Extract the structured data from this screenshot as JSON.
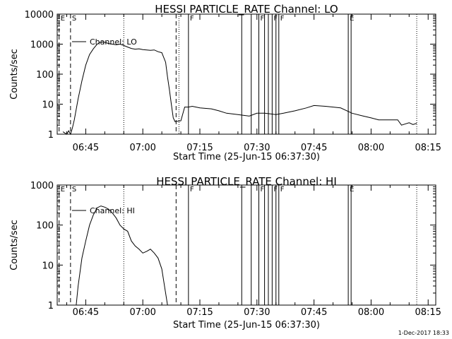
{
  "footer_date": "1-Dec-2017 18:33",
  "chart_data": [
    {
      "type": "line",
      "title": "HESSI PARTICLE_RATE Channel: LO",
      "xlabel": "Start Time (25-Jun-15 06:37:30)",
      "ylabel": "Counts/sec",
      "y_scale": "log",
      "ylim": [
        1,
        10000
      ],
      "xlim": [
        "06:37:30",
        "08:17:00"
      ],
      "x_ticks": [
        "06:45",
        "07:00",
        "07:15",
        "07:30",
        "07:45",
        "08:00",
        "08:15"
      ],
      "y_ticks": [
        "1",
        "10",
        "100",
        "1000",
        "10000"
      ],
      "legend": [
        "Channel: LO"
      ],
      "legend_position": "top-left",
      "series": [
        {
          "name": "Channel: LO",
          "x": [
            "06:39:00",
            "06:40:00",
            "06:40:30",
            "06:41:00",
            "06:41:30",
            "06:42:00",
            "06:43:00",
            "06:44:00",
            "06:45:00",
            "06:46:00",
            "06:47:00",
            "06:48:00",
            "06:49:00",
            "06:50:00",
            "06:51:00",
            "06:52:00",
            "06:53:00",
            "06:54:00",
            "06:55:00",
            "06:56:00",
            "06:57:00",
            "06:58:00",
            "06:59:00",
            "07:00:00",
            "07:01:00",
            "07:02:00",
            "07:03:00",
            "07:04:00",
            "07:05:00",
            "07:06:00",
            "07:06:30",
            "07:07:00",
            "07:07:30",
            "07:08:00",
            "07:08:30",
            "07:09:00",
            "07:10:00",
            "07:11:00",
            "07:12:00",
            "07:13:00",
            "07:15:00",
            "07:18:00",
            "07:20:00",
            "07:22:00",
            "07:25:00",
            "07:28:00",
            "07:30:00",
            "07:32:00",
            "07:35:00",
            "07:37:00",
            "07:40:00",
            "07:43:00",
            "07:45:00",
            "07:48:00",
            "07:50:00",
            "07:52:00",
            "07:55:00",
            "07:58:00",
            "08:00:00",
            "08:02:00",
            "08:05:00",
            "08:07:00",
            "08:08:00",
            "08:10:00",
            "08:11:00",
            "08:12:00"
          ],
          "y": [
            1.2,
            1.0,
            1.3,
            1.0,
            1.6,
            3,
            15,
            60,
            200,
            450,
            700,
            1000,
            1200,
            1150,
            1050,
            1000,
            950,
            1000,
            900,
            800,
            720,
            680,
            700,
            660,
            640,
            620,
            640,
            560,
            520,
            250,
            80,
            30,
            10,
            3.5,
            2.6,
            2.7,
            2.8,
            8,
            8,
            8.5,
            7.5,
            7,
            6,
            5,
            4.5,
            4,
            5,
            5,
            4.5,
            5,
            6,
            7.5,
            9,
            8.5,
            8,
            7.5,
            5,
            4,
            3.5,
            3,
            3,
            3,
            2,
            2.4,
            2.1,
            2.3
          ]
        }
      ],
      "time_markers": [
        {
          "label": "E",
          "time": "06:38:00",
          "style": "dashed"
        },
        {
          "label": "S",
          "time": "06:41:00",
          "style": "dashed"
        },
        {
          "label": "",
          "time": "06:55:00",
          "style": "dotted"
        },
        {
          "label": "",
          "time": "07:08:45",
          "style": "dashed"
        },
        {
          "label": "",
          "time": "07:09:30",
          "style": "dotted"
        },
        {
          "label": "F",
          "time": "07:12:00",
          "style": "solid"
        },
        {
          "label": "",
          "time": "07:26:00",
          "style": "solid"
        },
        {
          "label": "",
          "time": "07:28:30",
          "style": "solid"
        },
        {
          "label": "F",
          "time": "07:30:30",
          "style": "solid"
        },
        {
          "label": "",
          "time": "07:32:00",
          "style": "solid"
        },
        {
          "label": "",
          "time": "07:33:00",
          "style": "solid"
        },
        {
          "label": "F",
          "time": "07:34:00",
          "style": "solid"
        },
        {
          "label": "",
          "time": "07:35:00",
          "style": "solid"
        },
        {
          "label": "F",
          "time": "07:35:45",
          "style": "solid"
        },
        {
          "label": "E",
          "time": "07:54:00",
          "style": "solid"
        },
        {
          "label": "",
          "time": "07:54:45",
          "style": "solid"
        },
        {
          "label": "",
          "time": "08:12:00",
          "style": "dotted"
        }
      ],
      "grid": false
    },
    {
      "type": "line",
      "title": "HESSI PARTICLE_RATE Channel: HI",
      "xlabel": "Start Time (25-Jun-15 06:37:30)",
      "ylabel": "Counts/sec",
      "y_scale": "log",
      "ylim": [
        1,
        1000
      ],
      "xlim": [
        "06:37:30",
        "08:17:00"
      ],
      "x_ticks": [
        "06:45",
        "07:00",
        "07:15",
        "07:30",
        "07:45",
        "08:00",
        "08:15"
      ],
      "y_ticks": [
        "1",
        "10",
        "100",
        "1000"
      ],
      "legend": [
        "Channel: HI"
      ],
      "legend_position": "top-left",
      "series": [
        {
          "name": "Channel: HI",
          "x": [
            "06:42:30",
            "06:43:00",
            "06:44:00",
            "06:45:00",
            "06:46:00",
            "06:47:00",
            "06:48:00",
            "06:49:00",
            "06:50:00",
            "06:51:00",
            "06:52:00",
            "06:53:00",
            "06:54:00",
            "06:55:00",
            "06:56:00",
            "06:57:00",
            "06:58:00",
            "06:59:00",
            "07:00:00",
            "07:01:00",
            "07:02:00",
            "07:03:00",
            "07:04:00",
            "07:05:00",
            "07:05:30",
            "07:06:00",
            "07:06:30"
          ],
          "y": [
            1,
            3,
            15,
            40,
            100,
            180,
            270,
            300,
            280,
            250,
            200,
            150,
            100,
            80,
            70,
            40,
            30,
            25,
            20,
            22,
            25,
            20,
            15,
            8,
            4,
            2,
            1
          ]
        }
      ],
      "time_markers": [
        {
          "label": "E",
          "time": "06:38:00",
          "style": "dashed"
        },
        {
          "label": "S",
          "time": "06:41:00",
          "style": "dashed"
        },
        {
          "label": "",
          "time": "06:55:00",
          "style": "dotted"
        },
        {
          "label": "",
          "time": "07:08:45",
          "style": "dashed"
        },
        {
          "label": "F",
          "time": "07:12:00",
          "style": "solid"
        },
        {
          "label": "",
          "time": "07:26:00",
          "style": "solid"
        },
        {
          "label": "",
          "time": "07:28:30",
          "style": "solid"
        },
        {
          "label": "F",
          "time": "07:30:30",
          "style": "solid"
        },
        {
          "label": "",
          "time": "07:32:00",
          "style": "solid"
        },
        {
          "label": "",
          "time": "07:33:00",
          "style": "solid"
        },
        {
          "label": "F",
          "time": "07:34:00",
          "style": "solid"
        },
        {
          "label": "",
          "time": "07:35:00",
          "style": "solid"
        },
        {
          "label": "F",
          "time": "07:35:45",
          "style": "solid"
        },
        {
          "label": "E",
          "time": "07:54:00",
          "style": "solid"
        },
        {
          "label": "",
          "time": "07:54:45",
          "style": "solid"
        },
        {
          "label": "",
          "time": "08:12:00",
          "style": "dotted"
        }
      ],
      "grid": false
    }
  ]
}
